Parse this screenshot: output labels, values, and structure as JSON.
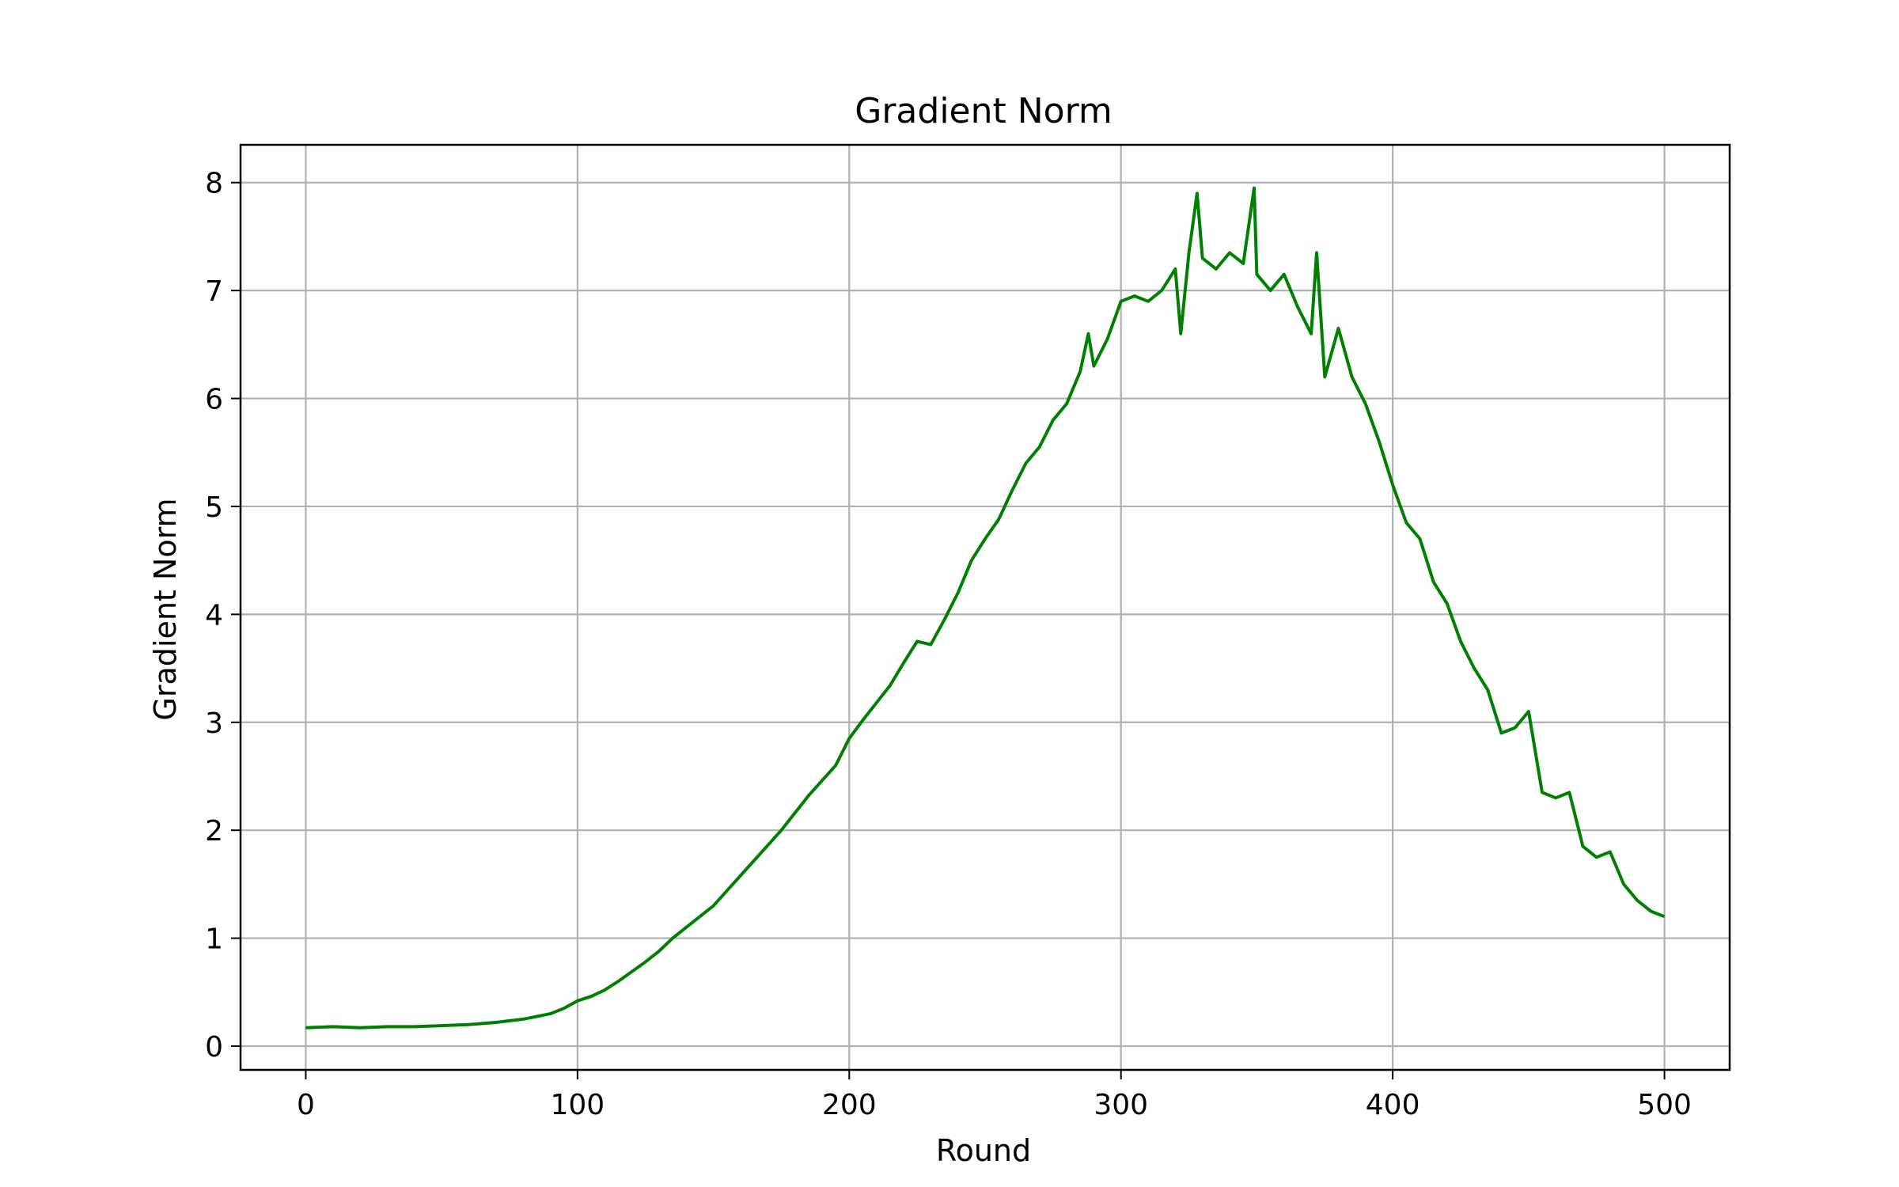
{
  "chart_data": {
    "type": "line",
    "title": "Gradient Norm",
    "xlabel": "Round",
    "ylabel": "Gradient Norm",
    "xlim": [
      -24,
      524
    ],
    "ylim": [
      -0.22,
      8.35
    ],
    "xticks": [
      0,
      100,
      200,
      300,
      400,
      500
    ],
    "yticks": [
      0,
      1,
      2,
      3,
      4,
      5,
      6,
      7,
      8
    ],
    "grid": true,
    "legend": "none",
    "colors": {
      "line": "#008000",
      "grid": "#b0b0b0",
      "axes": "#000000"
    },
    "series": [
      {
        "x": [
          0,
          10,
          20,
          30,
          40,
          50,
          60,
          70,
          80,
          90,
          95,
          100,
          105,
          110,
          115,
          120,
          125,
          130,
          135,
          140,
          145,
          150,
          155,
          160,
          165,
          170,
          175,
          180,
          185,
          190,
          195,
          200,
          205,
          210,
          215,
          220,
          225,
          230,
          235,
          240,
          245,
          250,
          255,
          260,
          265,
          270,
          275,
          280,
          285,
          288,
          290,
          295,
          300,
          305,
          310,
          315,
          320,
          322,
          325,
          328,
          330,
          335,
          340,
          345,
          349,
          350,
          355,
          360,
          365,
          370,
          372,
          375,
          380,
          385,
          390,
          395,
          400,
          405,
          410,
          415,
          420,
          425,
          430,
          435,
          440,
          445,
          450,
          455,
          460,
          465,
          470,
          475,
          480,
          485,
          490,
          495,
          500
        ],
        "y": [
          0.17,
          0.18,
          0.17,
          0.18,
          0.18,
          0.19,
          0.2,
          0.22,
          0.25,
          0.3,
          0.35,
          0.42,
          0.46,
          0.52,
          0.6,
          0.69,
          0.78,
          0.88,
          1.0,
          1.1,
          1.2,
          1.3,
          1.44,
          1.58,
          1.72,
          1.86,
          2.0,
          2.16,
          2.32,
          2.46,
          2.6,
          2.85,
          3.02,
          3.18,
          3.34,
          3.55,
          3.75,
          3.72,
          3.95,
          4.2,
          4.5,
          4.7,
          4.88,
          5.15,
          5.4,
          5.55,
          5.8,
          5.95,
          6.25,
          6.6,
          6.3,
          6.55,
          6.9,
          6.95,
          6.9,
          7.0,
          7.2,
          6.6,
          7.35,
          7.9,
          7.3,
          7.2,
          7.35,
          7.25,
          7.95,
          7.15,
          7.0,
          7.15,
          6.85,
          6.6,
          7.35,
          6.2,
          6.65,
          6.2,
          5.95,
          5.6,
          5.2,
          4.85,
          4.7,
          4.3,
          4.1,
          3.75,
          3.5,
          3.3,
          2.9,
          2.95,
          3.1,
          2.35,
          2.3,
          2.35,
          1.85,
          1.75,
          1.8,
          1.5,
          1.35,
          1.25,
          1.2
        ]
      }
    ]
  }
}
